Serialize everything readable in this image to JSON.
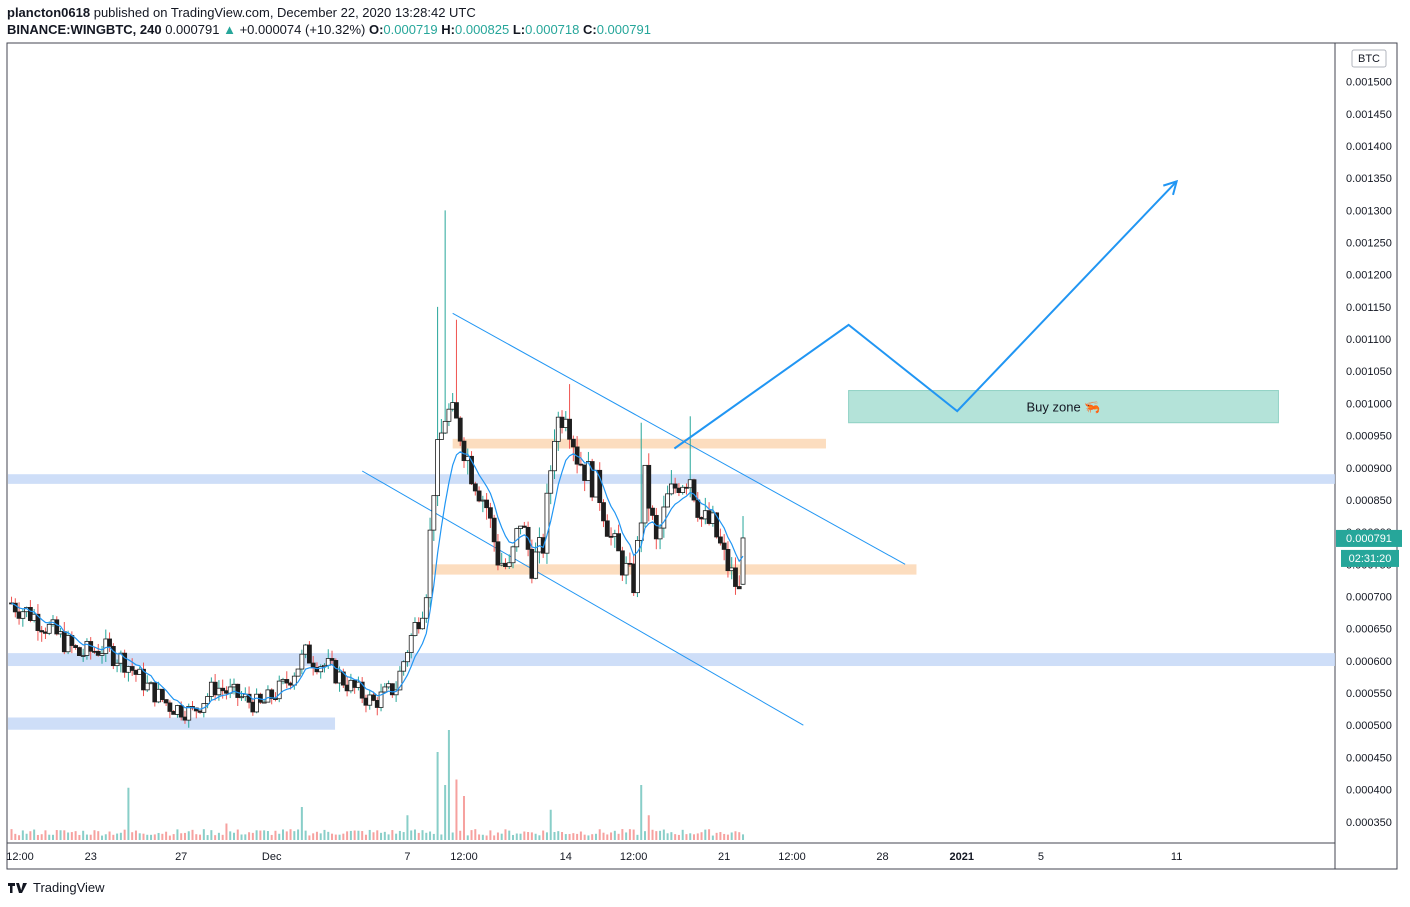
{
  "header": {
    "publisher": "plancton0618",
    "published_text": "published on TradingView.com, December 22, 2020 13:28:42 UTC",
    "symbol": "BINANCE:WINGBTC, 240",
    "last": "0.000791",
    "change": "+0.000074 (+10.32%)",
    "o_label": "O:",
    "o_value": "0.000719",
    "h_label": "H:",
    "h_value": "0.000825",
    "l_label": "L:",
    "l_value": "0.000718",
    "c_label": "C:",
    "c_value": "0.000791"
  },
  "footer": {
    "brand": "TradingView"
  },
  "colors": {
    "up": "#26a69a",
    "down": "#ef5350",
    "body": "#1e1e1e",
    "ma": "#2196f3",
    "zone_blue": "#c5d8f7",
    "zone_orange": "#fcd9b8",
    "buy_zone": "#b4e3d9"
  },
  "chart_data": {
    "type": "candlestick",
    "currency_label": "BTC",
    "price_ticks": [
      "0.001500",
      "0.001450",
      "0.001400",
      "0.001350",
      "0.001300",
      "0.001250",
      "0.001200",
      "0.001150",
      "0.001100",
      "0.001050",
      "0.001000",
      "0.000950",
      "0.000900",
      "0.000850",
      "0.000800",
      "0.000750",
      "0.000700",
      "0.000650",
      "0.000600",
      "0.000550",
      "0.000500",
      "0.000450",
      "0.000400",
      "0.000350"
    ],
    "x_ticks": [
      {
        "label": "12:00",
        "t": 0
      },
      {
        "label": "23",
        "t": 3.5
      },
      {
        "label": "27",
        "t": 7.5
      },
      {
        "label": "Dec",
        "t": 11.5
      },
      {
        "label": "7",
        "t": 17.5
      },
      {
        "label": "12:00",
        "t": 20
      },
      {
        "label": "14",
        "t": 24.5
      },
      {
        "label": "12:00",
        "t": 27.5
      },
      {
        "label": "21",
        "t": 31.5
      },
      {
        "label": "12:00",
        "t": 34.5
      },
      {
        "label": "28",
        "t": 38.5
      },
      {
        "label": "2021",
        "t": 42
      },
      {
        "label": "5",
        "t": 45.5
      },
      {
        "label": "11",
        "t": 51.5
      }
    ],
    "last_price_label": "0.000791",
    "countdown_label": "02:31:20",
    "annotation": "Buy zone 🦐",
    "anchors": [
      {
        "t": 0,
        "p": 0.00069
      },
      {
        "t": 1,
        "p": 0.00067
      },
      {
        "t": 2,
        "p": 0.00064
      },
      {
        "t": 3,
        "p": 0.00061
      },
      {
        "t": 4,
        "p": 0.00062
      },
      {
        "t": 5,
        "p": 0.0006
      },
      {
        "t": 6,
        "p": 0.00056
      },
      {
        "t": 7,
        "p": 0.00053
      },
      {
        "t": 8,
        "p": 0.00052
      },
      {
        "t": 9,
        "p": 0.00056
      },
      {
        "t": 10,
        "p": 0.000545
      },
      {
        "t": 11,
        "p": 0.00053
      },
      {
        "t": 12,
        "p": 0.00056
      },
      {
        "t": 13,
        "p": 0.00061
      },
      {
        "t": 14,
        "p": 0.00059
      },
      {
        "t": 15,
        "p": 0.00056
      },
      {
        "t": 16,
        "p": 0.000535
      },
      {
        "t": 17,
        "p": 0.00056
      },
      {
        "t": 17.5,
        "p": 0.00062
      },
      {
        "t": 18.3,
        "p": 0.0007
      },
      {
        "t": 18.7,
        "p": 0.00089
      },
      {
        "t": 19.2,
        "p": 0.00099
      },
      {
        "t": 19.8,
        "p": 0.00096
      },
      {
        "t": 20.3,
        "p": 0.0009
      },
      {
        "t": 21,
        "p": 0.00084
      },
      {
        "t": 21.5,
        "p": 0.00076
      },
      {
        "t": 22,
        "p": 0.00074
      },
      {
        "t": 22.5,
        "p": 0.00082
      },
      {
        "t": 23,
        "p": 0.00075
      },
      {
        "t": 23.5,
        "p": 0.00078
      },
      {
        "t": 24,
        "p": 0.00096
      },
      {
        "t": 24.5,
        "p": 0.001
      },
      {
        "t": 25,
        "p": 0.00092
      },
      {
        "t": 25.5,
        "p": 0.00089
      },
      {
        "t": 26,
        "p": 0.00086
      },
      {
        "t": 26.5,
        "p": 0.00079
      },
      {
        "t": 27,
        "p": 0.00075
      },
      {
        "t": 27.5,
        "p": 0.00072
      },
      {
        "t": 28,
        "p": 0.00088
      },
      {
        "t": 28.5,
        "p": 0.00078
      },
      {
        "t": 29,
        "p": 0.00085
      },
      {
        "t": 29.5,
        "p": 0.00088
      },
      {
        "t": 30,
        "p": 0.00089
      },
      {
        "t": 30.5,
        "p": 0.00082
      },
      {
        "t": 31,
        "p": 0.00081
      },
      {
        "t": 31.5,
        "p": 0.00076
      },
      {
        "t": 32,
        "p": 0.00072
      },
      {
        "t": 32.2,
        "p": 0.0007
      },
      {
        "t": 32.4,
        "p": 0.000791
      }
    ],
    "spikes": [
      {
        "t": 18.8,
        "h": 0.00115
      },
      {
        "t": 19.2,
        "h": 0.0013
      },
      {
        "t": 19.6,
        "h": 0.00113
      },
      {
        "t": 24.6,
        "h": 0.00103
      },
      {
        "t": 27.8,
        "h": 0.00097
      },
      {
        "t": 30,
        "h": 0.00098
      }
    ],
    "volume_spikes": [
      {
        "t": 5.2,
        "v": 0.95
      },
      {
        "t": 9.5,
        "v": 0.3
      },
      {
        "t": 12.8,
        "v": 0.6
      },
      {
        "t": 17.5,
        "v": 0.45
      },
      {
        "t": 18.9,
        "v": 1.6
      },
      {
        "t": 19.1,
        "v": 1.0
      },
      {
        "t": 19.3,
        "v": 2.0
      },
      {
        "t": 19.6,
        "v": 1.1
      },
      {
        "t": 20.0,
        "v": 0.8
      },
      {
        "t": 23.8,
        "v": 0.55
      },
      {
        "t": 27.9,
        "v": 1.0
      },
      {
        "t": 28.2,
        "v": 0.45
      }
    ],
    "horizontal_zones": [
      {
        "color": "blue",
        "p_top": 0.00089,
        "p_bot": 0.000875,
        "t_start": -1,
        "t_end": 99
      },
      {
        "color": "blue",
        "p_top": 0.000612,
        "p_bot": 0.000592,
        "t_start": -1,
        "t_end": 99
      },
      {
        "color": "blue",
        "p_top": 0.000512,
        "p_bot": 0.000493,
        "t_start": -1,
        "t_end": 14.3
      },
      {
        "color": "orange",
        "p_top": 0.000945,
        "p_bot": 0.00093,
        "t_start": 19.5,
        "t_end": 36.0
      },
      {
        "color": "orange",
        "p_top": 0.00075,
        "p_bot": 0.000734,
        "t_start": 18.5,
        "t_end": 40.0
      }
    ],
    "buy_zone": {
      "p_top": 0.00102,
      "p_bot": 0.00097,
      "t_start": 37.0,
      "t_end": 56.0
    },
    "trend_lines": [
      {
        "t1": 19.5,
        "p1": 0.00114,
        "t2": 39.5,
        "p2": 0.00075
      },
      {
        "t1": 15.5,
        "p1": 0.000895,
        "t2": 35.0,
        "p2": 0.0005
      }
    ],
    "projection_path": [
      {
        "t": 29.3,
        "p": 0.00093
      },
      {
        "t": 37.0,
        "p": 0.001122
      },
      {
        "t": 41.8,
        "p": 0.000988
      },
      {
        "t": 51.5,
        "p": 0.001345
      }
    ],
    "price_range": [
      0.000317,
      0.00156
    ],
    "t_range": [
      -0.2,
      58.5
    ]
  }
}
